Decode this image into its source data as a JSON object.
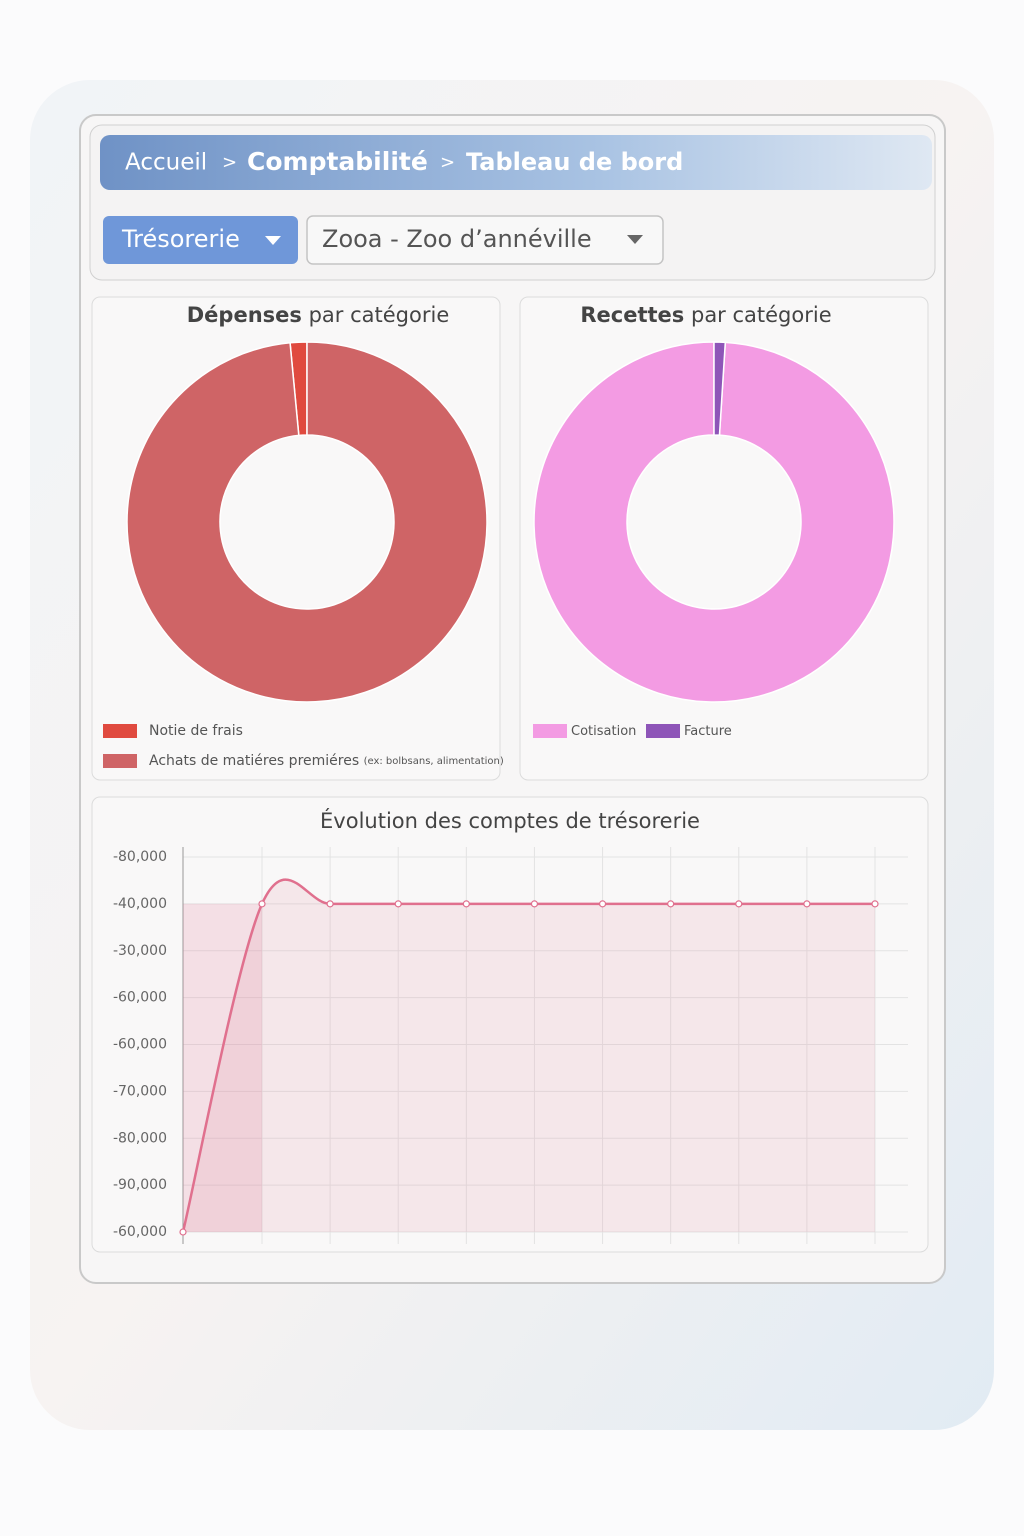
{
  "breadcrumb": {
    "items": [
      "Accueil",
      "Comptabilité",
      "Tableau de bord"
    ],
    "separator": ">"
  },
  "filters": {
    "view": "Trésorerie",
    "organization": "Zooa - Zoo d’annéville"
  },
  "chart_data": [
    {
      "type": "doughnut",
      "title_bold": "Dépenses",
      "title_rest": "par catégorie",
      "categories": [
        "Notie de frais",
        "Achats de matiéres premiéres"
      ],
      "label_note": "(ex: bolbsans, alimentation)",
      "values": [
        1.5,
        98.5
      ],
      "colors": [
        "#e04a3f",
        "#cf6466"
      ]
    },
    {
      "type": "doughnut",
      "title_bold": "Recettes",
      "title_rest": "par catégorie",
      "categories": [
        "Cotisation",
        "Facture"
      ],
      "values": [
        99,
        1
      ],
      "colors": [
        "#f39be3",
        "#8e55b8"
      ]
    },
    {
      "type": "line",
      "title": "Évolution des comptes de trésorerie",
      "categories": [
        null,
        null,
        null,
        null,
        null,
        null,
        null,
        null,
        null,
        null,
        null
      ],
      "series": [
        {
          "color": "#e0708e",
          "values": [
            0,
            7,
            7,
            7,
            7,
            7,
            7,
            7,
            7,
            7,
            7
          ]
        }
      ],
      "ylim": [
        0,
        8
      ],
      "yticks": [
        0,
        1,
        2,
        3,
        4,
        5,
        6,
        7,
        8
      ],
      "ytick_labels": [
        "-60,000",
        "-90,000",
        "-80,000",
        "-70,000",
        "-60,000",
        "-60,000",
        "-30,000",
        "-40,000",
        "-80,000"
      ],
      "grid": true
    }
  ]
}
